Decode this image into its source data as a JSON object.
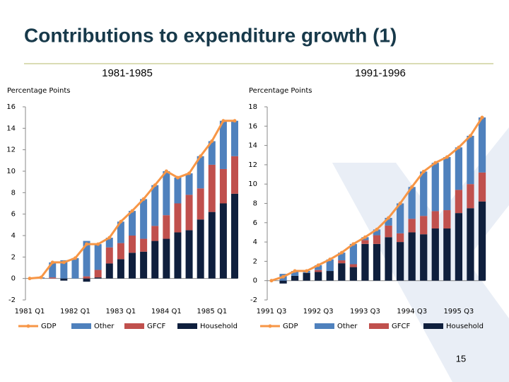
{
  "slide": {
    "title": "Contributions to expenditure growth (1)",
    "page_number": "15"
  },
  "chart_data": [
    {
      "type": "bar",
      "title": "1981-1985",
      "ylabel": "Percentage Points",
      "categories": [
        "1981 Q1",
        null,
        null,
        null,
        "1982 Q1",
        null,
        null,
        null,
        "1983 Q1",
        null,
        null,
        null,
        "1984 Q1",
        null,
        null,
        null,
        "1985 Q1",
        null,
        null
      ],
      "series": [
        {
          "name": "GDP",
          "type": "line",
          "color": "#f79646",
          "values": [
            0,
            0.1,
            1.5,
            1.5,
            1.9,
            3.2,
            3.2,
            3.8,
            5.3,
            6.3,
            7.4,
            8.7,
            10.0,
            9.4,
            9.8,
            11.4,
            12.8,
            14.7,
            14.7
          ]
        },
        {
          "name": "Other",
          "color": "#4f81bd",
          "values": [
            0,
            0.1,
            1.4,
            1.7,
            1.9,
            3.3,
            2.4,
            0.9,
            2.0,
            2.3,
            3.7,
            3.8,
            4.1,
            2.4,
            2.0,
            3.0,
            2.2,
            4.5,
            3.3
          ]
        },
        {
          "name": "GFCF",
          "color": "#c0504d",
          "values": [
            0,
            0,
            0.1,
            0,
            0,
            0.2,
            0.7,
            1.5,
            1.5,
            1.6,
            1.2,
            1.4,
            2.2,
            2.7,
            3.3,
            2.9,
            4.4,
            3.2,
            3.5
          ]
        },
        {
          "name": "Household",
          "color": "#0f1f3d",
          "values": [
            0,
            0,
            0,
            -0.2,
            0,
            -0.3,
            0.1,
            1.4,
            1.8,
            2.4,
            2.5,
            3.5,
            3.7,
            4.3,
            4.5,
            5.5,
            6.2,
            7.0,
            7.9
          ]
        }
      ],
      "ylim": [
        -2,
        16
      ],
      "yticks": [
        -2,
        0,
        2,
        4,
        6,
        8,
        10,
        12,
        14,
        16
      ],
      "stacked": true
    },
    {
      "type": "bar",
      "title": "1991-1996",
      "ylabel": "Percentage Points",
      "categories": [
        "1991 Q3",
        null,
        null,
        null,
        "1992 Q3",
        null,
        null,
        null,
        "1993 Q3",
        null,
        null,
        null,
        "1994 Q3",
        null,
        null,
        null,
        "1995 Q3",
        null,
        null
      ],
      "series": [
        {
          "name": "GDP",
          "type": "line",
          "color": "#f79646",
          "values": [
            0,
            0.4,
            1.0,
            1.0,
            1.6,
            2.2,
            2.9,
            3.8,
            4.5,
            5.3,
            6.5,
            8.0,
            9.7,
            11.3,
            12.2,
            12.8,
            13.8,
            15.0,
            16.9
          ]
        },
        {
          "name": "Other",
          "color": "#4f81bd",
          "values": [
            0,
            0.7,
            0.5,
            0.2,
            0.5,
            1.2,
            0.8,
            2.1,
            0.3,
            0.6,
            0.8,
            3.1,
            3.3,
            4.6,
            5.0,
            5.5,
            4.4,
            5.0,
            5.7
          ]
        },
        {
          "name": "GFCF",
          "color": "#c0504d",
          "values": [
            0,
            0,
            0,
            0,
            0.2,
            0,
            0.3,
            0.3,
            0.4,
            0.9,
            1.2,
            0.9,
            1.4,
            1.9,
            1.8,
            1.9,
            2.4,
            2.5,
            3.0
          ]
        },
        {
          "name": "Household",
          "color": "#0f1f3d",
          "values": [
            0,
            -0.3,
            0.5,
            0.8,
            0.9,
            1.0,
            1.8,
            1.4,
            3.8,
            3.8,
            4.5,
            4.0,
            5.0,
            4.8,
            5.4,
            5.4,
            7.0,
            7.5,
            8.2
          ]
        }
      ],
      "ylim": [
        -2,
        18
      ],
      "yticks": [
        -2,
        0,
        2,
        4,
        6,
        8,
        10,
        12,
        14,
        16,
        18
      ],
      "stacked": true
    }
  ]
}
